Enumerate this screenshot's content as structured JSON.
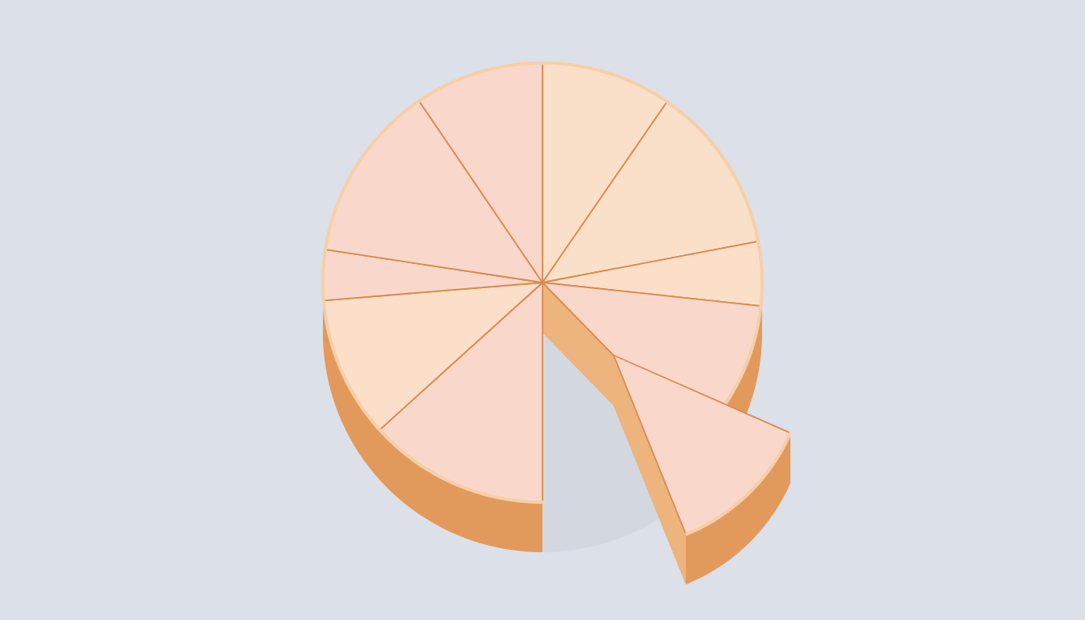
{
  "chart_data": {
    "type": "pie",
    "values": [
      9.6,
      12.4,
      4.7,
      11.0,
      12.3,
      13.3,
      10.4,
      3.7,
      13.1,
      9.5
    ],
    "colors": [
      "#fbe0c9",
      "#fbe0c9",
      "#fbdfc9",
      "#f9d7cb",
      "#f9d7cb",
      "#f9d7cb",
      "#fbdfc9",
      "#f9d8cb",
      "#f9d7cb",
      "#f9d7cb"
    ]
  }
}
